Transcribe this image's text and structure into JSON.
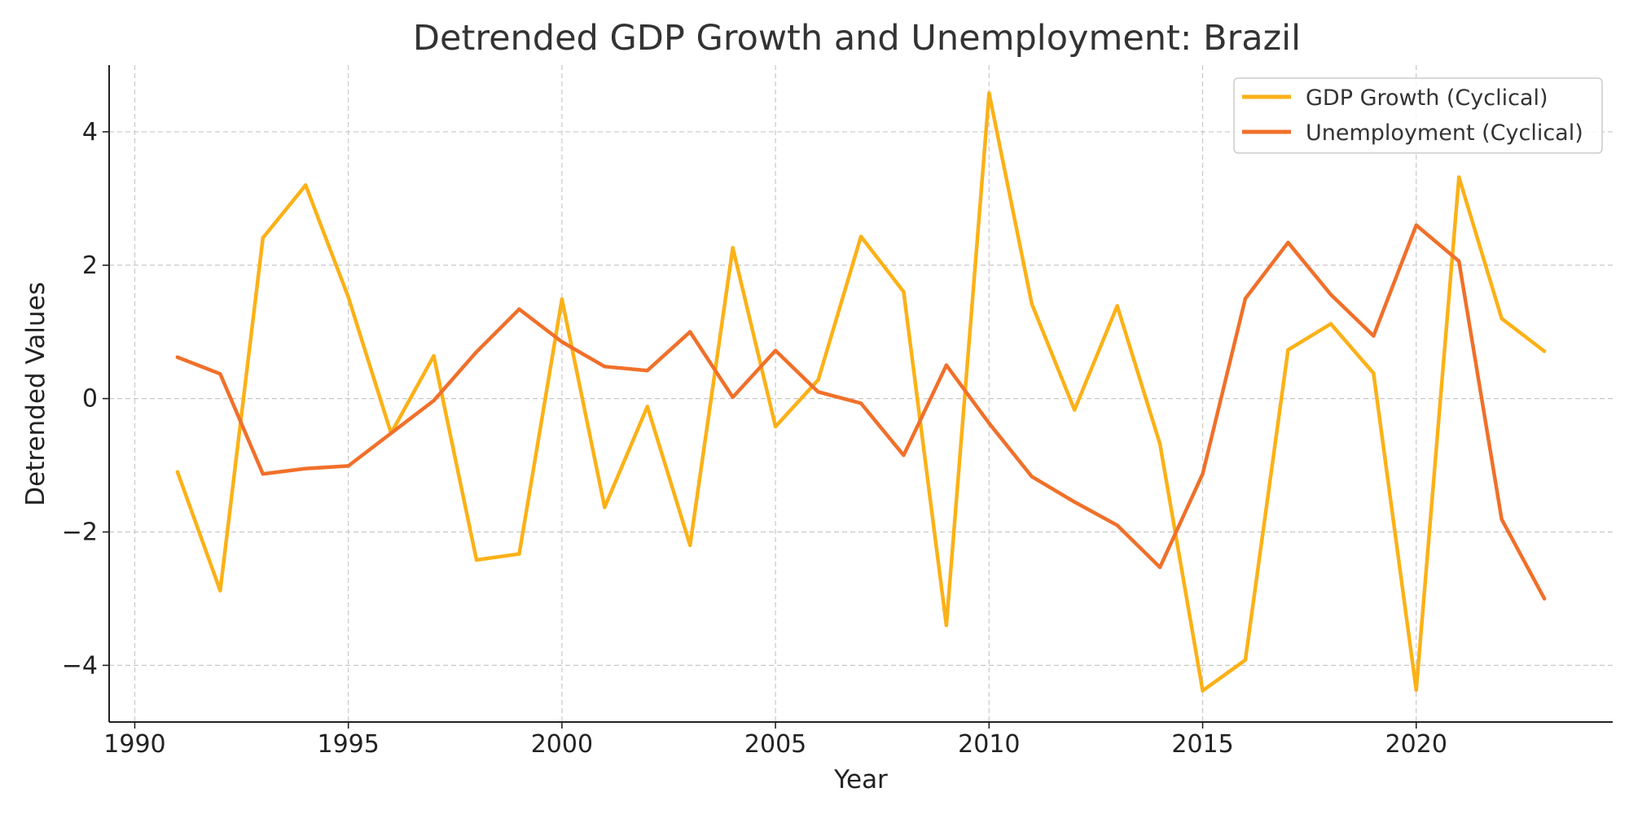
{
  "chart_data": {
    "type": "line",
    "title": "Detrended GDP Growth and Unemployment: Brazil",
    "xlabel": "Year",
    "ylabel": "Detrended Values",
    "xlim": [
      1989.4,
      2024.6
    ],
    "ylim": [
      -4.85,
      5.0
    ],
    "xticks": [
      1990,
      1995,
      2000,
      2005,
      2010,
      2015,
      2020
    ],
    "yticks": [
      -4,
      -2,
      0,
      2,
      4
    ],
    "grid": true,
    "legend_position": "top-right",
    "x": [
      1991,
      1992,
      1993,
      1994,
      1995,
      1996,
      1997,
      1998,
      1999,
      2000,
      2001,
      2002,
      2003,
      2004,
      2005,
      2006,
      2007,
      2008,
      2009,
      2010,
      2011,
      2012,
      2013,
      2014,
      2015,
      2016,
      2017,
      2018,
      2019,
      2020,
      2021,
      2022,
      2023
    ],
    "series": [
      {
        "name": "GDP Growth (Cyclical)",
        "color": "#FBB117",
        "values": [
          -1.1,
          -2.88,
          2.41,
          3.2,
          1.52,
          -0.52,
          0.64,
          -2.42,
          -2.33,
          1.49,
          -1.63,
          -0.12,
          -2.2,
          2.26,
          -0.42,
          0.28,
          2.43,
          1.6,
          -3.4,
          4.58,
          1.42,
          -0.17,
          1.39,
          -0.68,
          -4.38,
          -3.92,
          0.73,
          1.12,
          0.38,
          -4.37,
          3.32,
          1.2,
          0.71
        ]
      },
      {
        "name": "Unemployment (Cyclical)",
        "color": "#F0702A",
        "values": [
          0.62,
          0.37,
          -1.13,
          -1.05,
          -1.01,
          -0.52,
          -0.03,
          0.7,
          1.34,
          0.85,
          0.48,
          0.42,
          1.0,
          0.02,
          0.72,
          0.1,
          -0.07,
          -0.85,
          0.5,
          -0.37,
          -1.17,
          -1.55,
          -1.9,
          -2.53,
          -1.13,
          1.5,
          2.34,
          1.56,
          0.94,
          2.6,
          2.06,
          -1.81,
          -3.0
        ]
      }
    ]
  }
}
